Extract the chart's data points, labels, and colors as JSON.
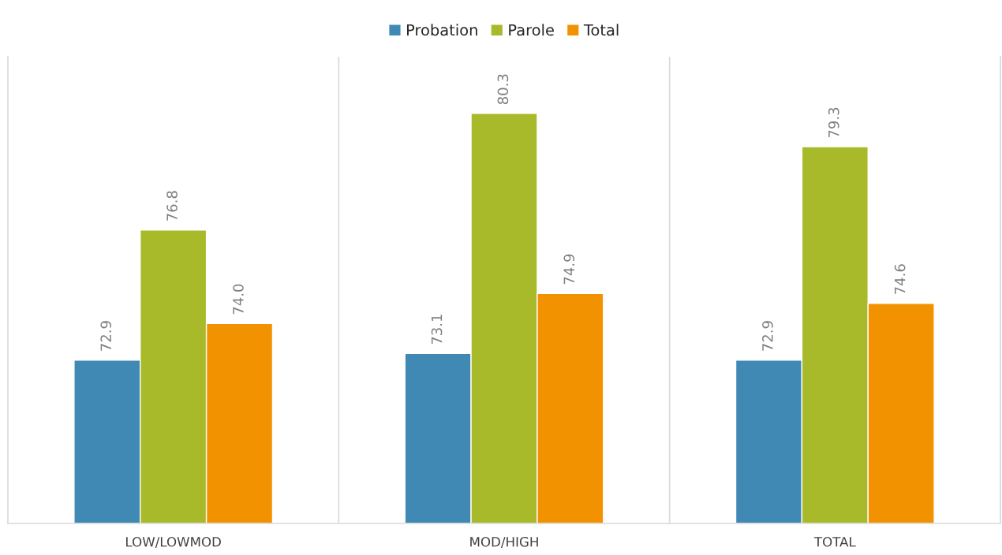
{
  "chart_data": {
    "type": "bar",
    "categories": [
      "LOW/LOWMOD",
      "MOD/HIGH",
      "TOTAL"
    ],
    "series": [
      {
        "name": "Probation",
        "color": "#4189b5",
        "values": [
          72.9,
          73.1,
          72.9
        ],
        "value_labels": [
          "72.9",
          "73.1",
          "72.9"
        ]
      },
      {
        "name": "Parole",
        "color": "#a8b92a",
        "values": [
          76.8,
          80.3,
          79.3
        ],
        "value_labels": [
          "76.8",
          "80.3",
          "79.3"
        ]
      },
      {
        "name": "Total",
        "color": "#f39200",
        "values": [
          74.0,
          74.9,
          74.6
        ],
        "value_labels": [
          "74.0",
          "74.9",
          "74.6"
        ]
      }
    ],
    "ylim": [
      68,
      82
    ],
    "legend": "top",
    "tick_labels": "x",
    "grid": false
  }
}
